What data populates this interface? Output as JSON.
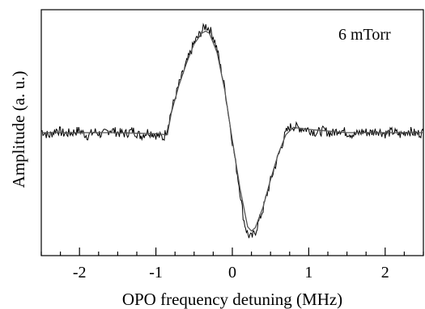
{
  "chart_data": {
    "type": "line",
    "title": "",
    "annotation": "6 mTorr",
    "xlabel": "OPO frequency detuning (MHz)",
    "ylabel": "Amplitude (a. u.)",
    "xlim": [
      -2.5,
      2.5
    ],
    "ylim": [
      -1.15,
      1.15
    ],
    "grid": false,
    "xticks": [
      -2,
      -1,
      0,
      1,
      2
    ],
    "xtick_labels": [
      "-2",
      "-1",
      "0",
      "1",
      "2"
    ],
    "minor_xtick_step": 0.25,
    "colors": {
      "line": "#000000",
      "fit": "#555555",
      "frame": "#000000"
    },
    "series": [
      {
        "kind": "measured",
        "x": [
          -2.5,
          -2.4,
          -2.3,
          -2.2,
          -2.1,
          -2.0,
          -1.9,
          -1.8,
          -1.7,
          -1.6,
          -1.5,
          -1.4,
          -1.3,
          -1.2,
          -1.1,
          -1.0,
          -0.9,
          -0.85,
          -0.8,
          -0.7,
          -0.6,
          -0.5,
          -0.4,
          -0.35,
          -0.3,
          -0.25,
          -0.2,
          -0.1,
          0.0,
          0.1,
          0.15,
          0.2,
          0.25,
          0.3,
          0.4,
          0.5,
          0.6,
          0.7,
          0.75,
          0.8,
          0.9,
          1.0,
          1.1,
          1.2,
          1.3,
          1.4,
          1.5,
          1.6,
          1.7,
          1.8,
          1.9,
          2.0,
          2.1,
          2.2,
          2.3,
          2.4,
          2.5
        ],
        "y": [
          0.02,
          -0.03,
          0.03,
          -0.01,
          0.0,
          0.02,
          -0.03,
          0.01,
          -0.02,
          0.03,
          0.0,
          -0.01,
          0.02,
          -0.03,
          0.01,
          -0.02,
          -0.05,
          0.05,
          0.2,
          0.45,
          0.65,
          0.84,
          0.95,
          1.0,
          0.97,
          0.9,
          0.78,
          0.42,
          -0.08,
          -0.55,
          -0.82,
          -0.95,
          -0.98,
          -0.93,
          -0.72,
          -0.45,
          -0.22,
          0.0,
          0.05,
          0.06,
          0.04,
          0.03,
          0.0,
          0.02,
          -0.01,
          0.03,
          0.0,
          -0.02,
          0.01,
          0.0,
          0.02,
          -0.01,
          0.01,
          -0.02,
          0.02,
          -0.01,
          0.0
        ]
      },
      {
        "kind": "fit",
        "x": [
          -2.5,
          -1.5,
          -1.0,
          -0.85,
          -0.8,
          -0.7,
          -0.6,
          -0.5,
          -0.4,
          -0.35,
          -0.3,
          -0.2,
          -0.1,
          0.0,
          0.1,
          0.2,
          0.25,
          0.3,
          0.4,
          0.5,
          0.6,
          0.7,
          0.8,
          1.0,
          1.5,
          2.5
        ],
        "y": [
          0.0,
          0.0,
          -0.01,
          -0.02,
          0.18,
          0.44,
          0.65,
          0.83,
          0.93,
          0.95,
          0.93,
          0.75,
          0.4,
          -0.07,
          -0.52,
          -0.88,
          -0.92,
          -0.89,
          -0.7,
          -0.44,
          -0.2,
          -0.02,
          0.05,
          0.03,
          0.0,
          0.0
        ]
      }
    ]
  }
}
